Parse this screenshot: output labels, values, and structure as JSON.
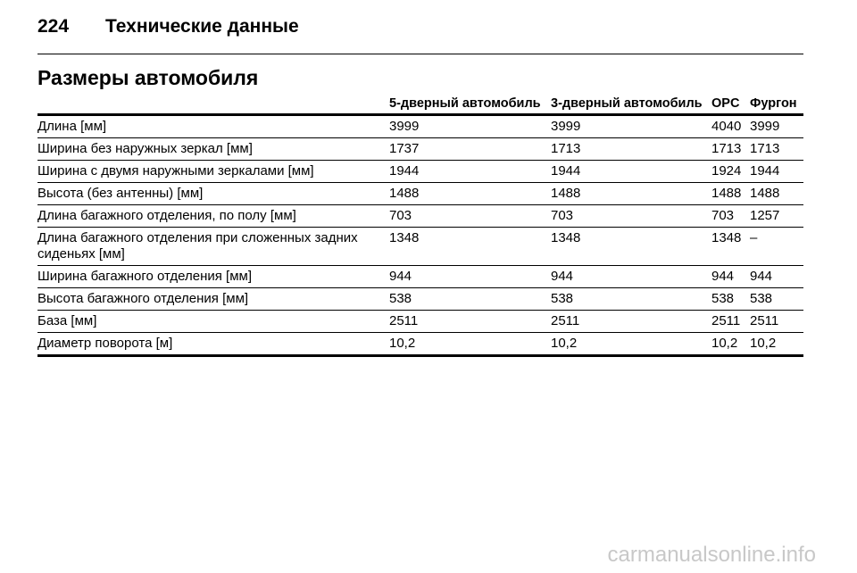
{
  "header": {
    "page": "224",
    "title": "Технические данные"
  },
  "section": {
    "title": "Размеры автомобиля"
  },
  "table": {
    "columns": [
      "",
      "5-дверный автомобиль",
      "3-дверный автомобиль",
      "OPC",
      "Фургон"
    ],
    "rows": [
      [
        "Длина [мм]",
        "3999",
        "3999",
        "4040",
        "3999"
      ],
      [
        "Ширина без наружных зеркал [мм]",
        "1737",
        "1713",
        "1713",
        "1713"
      ],
      [
        "Ширина с двумя наружными зеркалами [мм]",
        "1944",
        "1944",
        "1924",
        "1944"
      ],
      [
        "Высота (без антенны) [мм]",
        "1488",
        "1488",
        "1488",
        "1488"
      ],
      [
        "Длина багажного отделения, по полу [мм]",
        "703",
        "703",
        "703",
        "1257"
      ],
      [
        "Длина багажного отделения при сложенных задних сиденьях [мм]",
        "1348",
        "1348",
        "1348",
        "–"
      ],
      [
        "Ширина багажного отделения [мм]",
        "944",
        "944",
        "944",
        "944"
      ],
      [
        "Высота багажного отделения [мм]",
        "538",
        "538",
        "538",
        "538"
      ],
      [
        "База [мм]",
        "2511",
        "2511",
        "2511",
        "2511"
      ],
      [
        "Диаметр поворота [м]",
        "10,2",
        "10,2",
        "10,2",
        "10,2"
      ]
    ]
  },
  "watermark": "carmanualsonline.info"
}
